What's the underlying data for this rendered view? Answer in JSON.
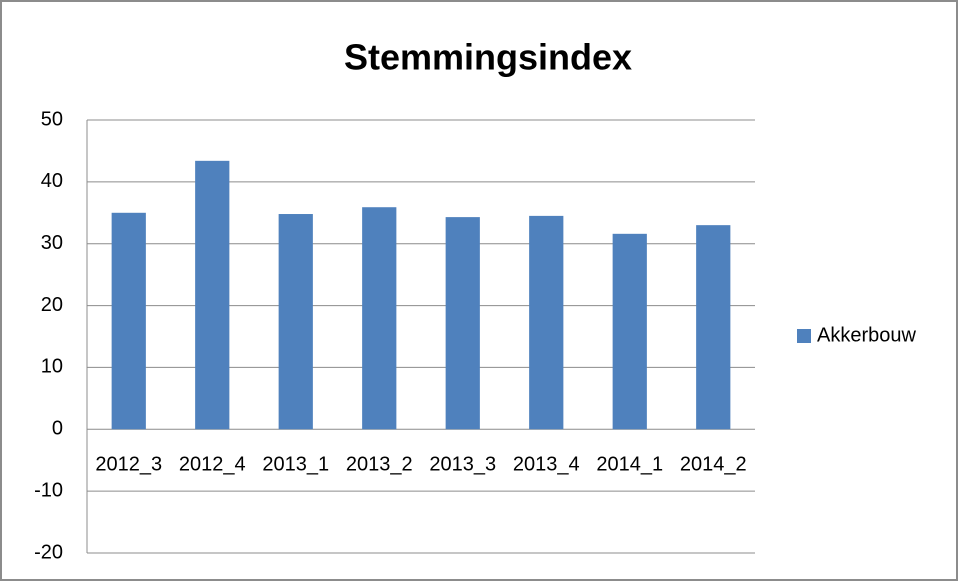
{
  "chart_data": {
    "type": "bar",
    "title": "Stemmingsindex",
    "categories": [
      "2012_3",
      "2012_4",
      "2013_1",
      "2013_2",
      "2013_3",
      "2013_4",
      "2014_1",
      "2014_2"
    ],
    "series": [
      {
        "name": "Akkerbouw",
        "color": "#4f81bd",
        "values": [
          35,
          43.4,
          34.8,
          35.9,
          34.3,
          34.5,
          31.6,
          33
        ]
      }
    ],
    "ylim": [
      -20,
      50
    ],
    "yticks": [
      -20,
      -10,
      0,
      10,
      20,
      30,
      40,
      50
    ],
    "grid": true,
    "legend": "right"
  }
}
